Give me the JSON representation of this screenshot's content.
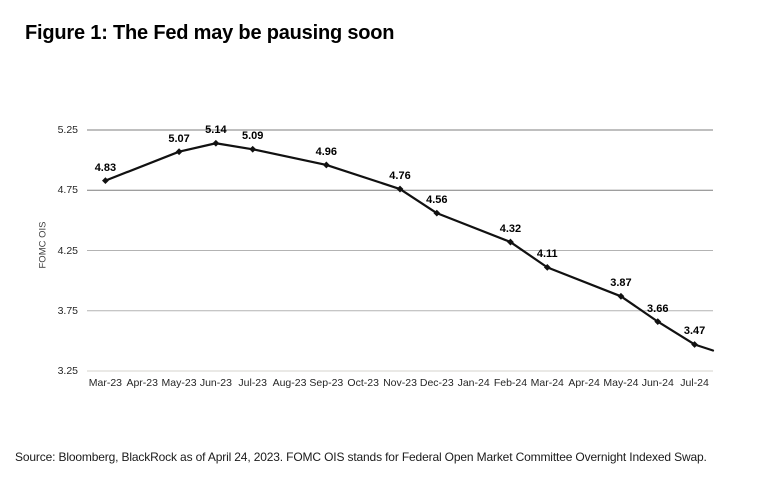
{
  "title": "Figure 1: The Fed may be pausing soon",
  "source": "Source: Bloomberg, BlackRock as of April 24, 2023. FOMC OIS stands for Federal Open Market Committee Overnight Indexed Swap.",
  "chart_data": {
    "type": "line",
    "title": "Figure 1: The Fed may be pausing soon",
    "xlabel": "",
    "ylabel": "FOMC OIS",
    "x_categories": [
      "Mar-23",
      "Apr-23",
      "May-23",
      "Jun-23",
      "Jul-23",
      "Aug-23",
      "Sep-23",
      "Oct-23",
      "Nov-23",
      "Dec-23",
      "Jan-24",
      "Feb-24",
      "Mar-24",
      "Apr-24",
      "May-24",
      "Jun-24",
      "Jul-24"
    ],
    "y_ticks": [
      5.25,
      4.75,
      4.25,
      3.75,
      3.25
    ],
    "ylim": [
      3.25,
      5.25
    ],
    "grid": "horizontal",
    "legend": "none",
    "series": [
      {
        "name": "FOMC OIS",
        "marker": "diamond",
        "data_labels": true,
        "points": [
          {
            "x": "Mar-23",
            "value": 4.83
          },
          {
            "x": "May-23",
            "value": 5.07
          },
          {
            "x": "Jun-23",
            "value": 5.14
          },
          {
            "x": "Jul-23",
            "value": 5.09
          },
          {
            "x": "Sep-23",
            "value": 4.96
          },
          {
            "x": "Nov-23",
            "value": 4.76
          },
          {
            "x": "Dec-23",
            "value": 4.56
          },
          {
            "x": "Feb-24",
            "value": 4.32
          },
          {
            "x": "Mar-24",
            "value": 4.11
          },
          {
            "x": "May-24",
            "value": 3.87
          },
          {
            "x": "Jun-24",
            "value": 3.66
          },
          {
            "x": "Jul-24",
            "value": 3.47
          }
        ],
        "unlabeled_line_end_value": 3.42
      }
    ],
    "colors": {
      "line": "#111111",
      "grid_dark": "#7f7f7f",
      "grid_light": "#b3b3b3",
      "grid_bottom": "#d5d3cc",
      "text": "#000000"
    }
  }
}
